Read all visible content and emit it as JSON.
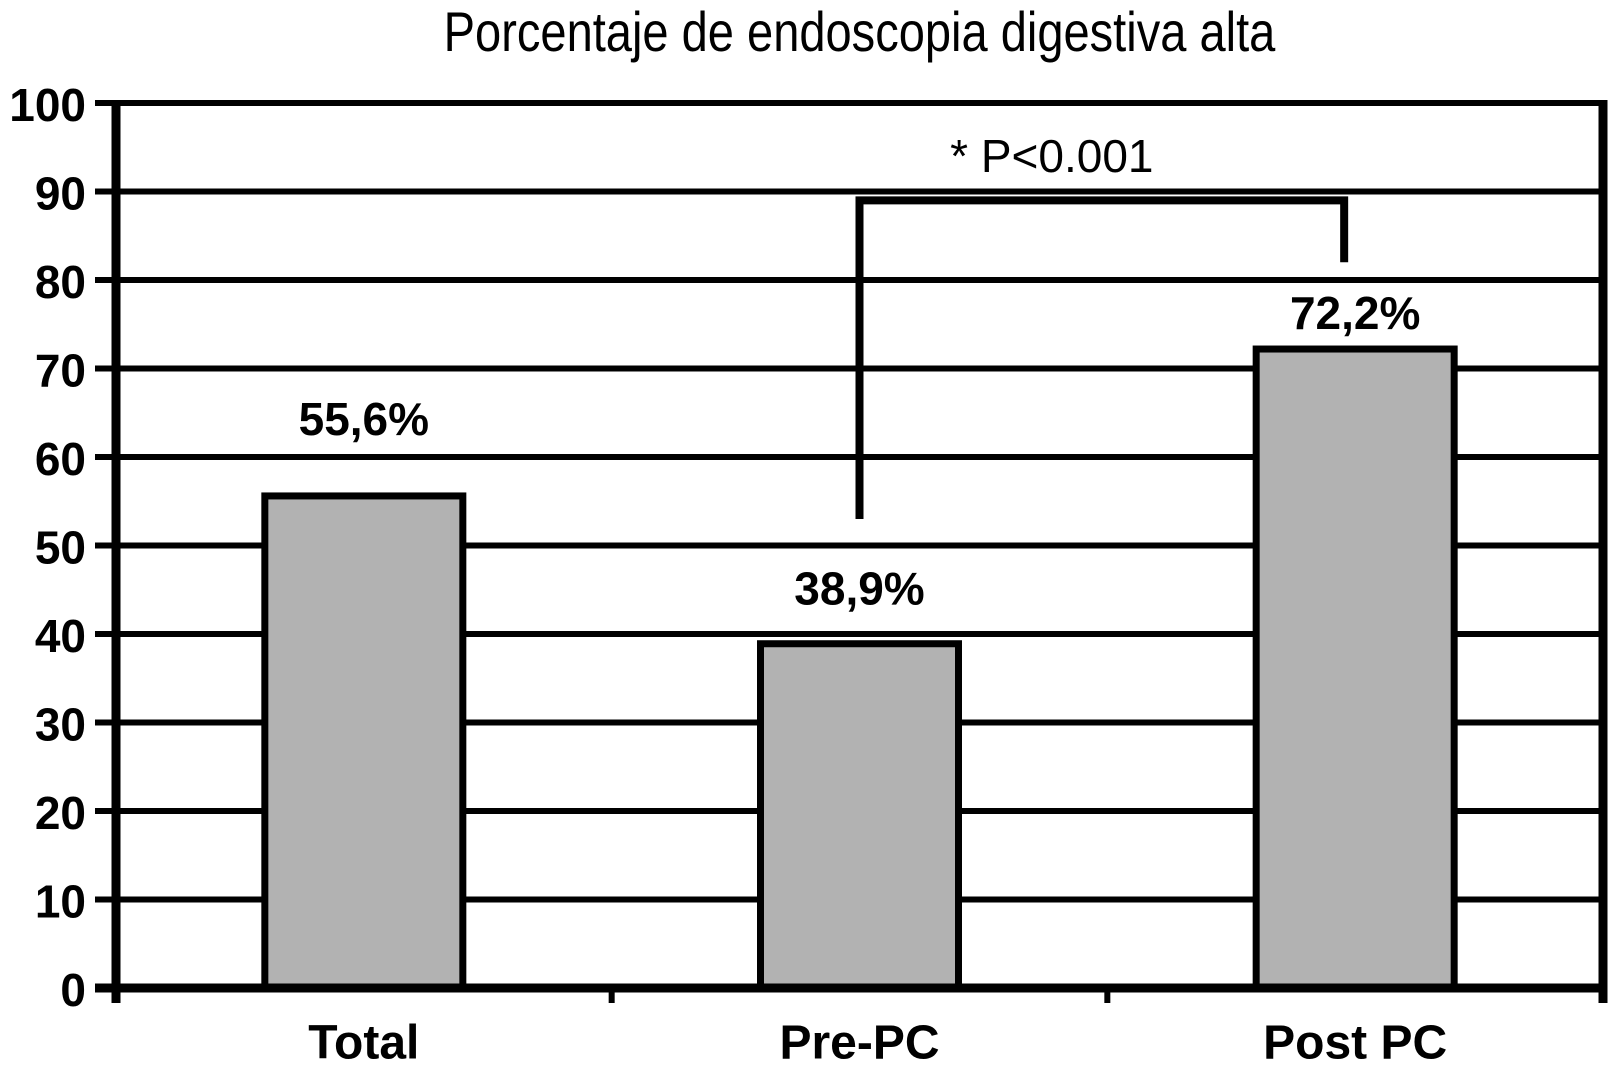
{
  "chart_data": {
    "type": "bar",
    "title": "Porcentaje de endoscopia digestiva alta",
    "categories": [
      "Total",
      "Pre-PC",
      "Post PC"
    ],
    "values": [
      55.6,
      38.9,
      72.2
    ],
    "value_labels": [
      "55,6%",
      "38,9%",
      "72,2%"
    ],
    "xlabel": "",
    "ylabel": "",
    "ylim": [
      0,
      100
    ],
    "yticks": [
      0,
      10,
      20,
      30,
      40,
      50,
      60,
      70,
      80,
      90,
      100
    ],
    "ytick_labels": [
      "0",
      "10",
      "20",
      "30",
      "40",
      "50",
      "60",
      "70",
      "80",
      "90",
      "100"
    ],
    "grid": "horizontal",
    "legend": "none",
    "bar_color": "#b2b2b2",
    "bar_border_color": "#000000",
    "axis_color": "#000000",
    "background_color": "#ffffff",
    "annotation": {
      "label": "* P<0.001",
      "between": [
        "Pre-PC",
        "Post PC"
      ],
      "bracket_top_value": 89,
      "left_drop_value": 53,
      "right_drop_value": 82,
      "label_value_y": 94
    }
  }
}
